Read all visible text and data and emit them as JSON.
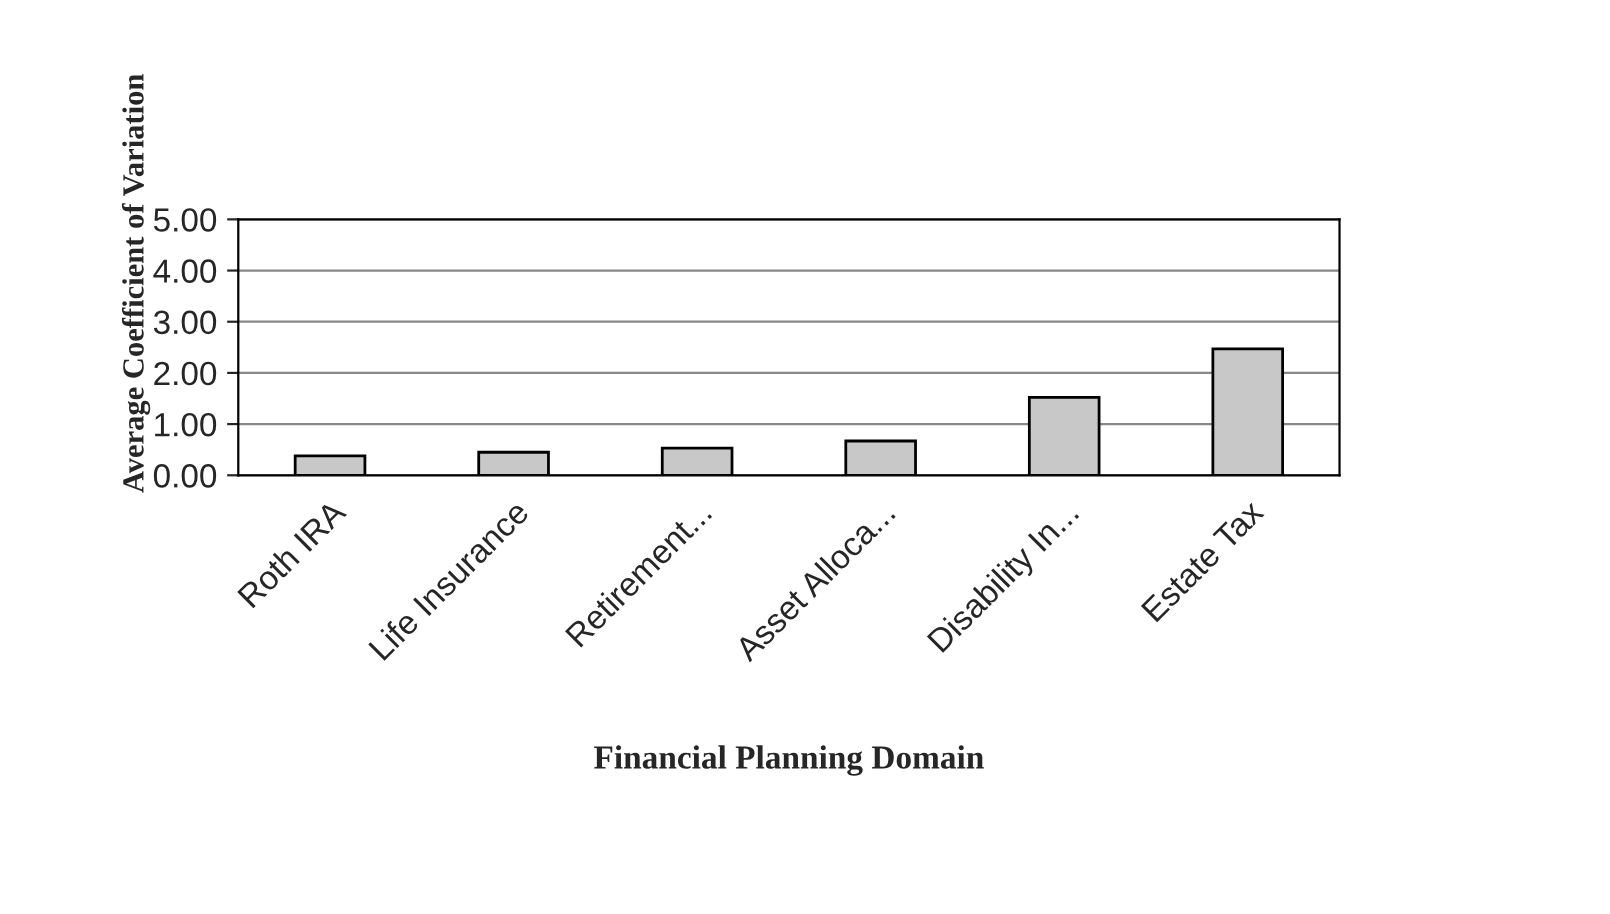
{
  "chart_data": {
    "type": "bar",
    "xlabel": "Financial Planning Domain",
    "ylabel": "Average Coefficient of Variation",
    "categories": [
      "Roth IRA",
      "Life Insurance",
      "Retirement...",
      "Asset Alloca...",
      "Disability In...",
      "Estate Tax"
    ],
    "values": [
      0.38,
      0.45,
      0.53,
      0.67,
      1.52,
      2.47
    ],
    "color": "#c8c8c8",
    "ylim": [
      0,
      5
    ],
    "yticks": [
      {
        "value": 0,
        "label": "0.00"
      },
      {
        "value": 1,
        "label": "1.00"
      },
      {
        "value": 2,
        "label": "2.00"
      },
      {
        "value": 3,
        "label": "3.00"
      },
      {
        "value": 4,
        "label": "4.00"
      },
      {
        "value": 5,
        "label": "5.00"
      }
    ],
    "grid": "y",
    "legend": false
  }
}
